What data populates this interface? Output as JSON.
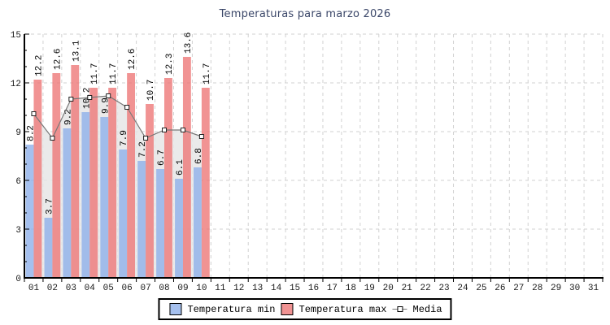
{
  "title": "Temperaturas para marzo 2026",
  "legend": {
    "min_label": "Temperatura min",
    "max_label": "Temperatura max",
    "media_label": "Media"
  },
  "colors": {
    "title": "#3a4668",
    "axis": "#000000",
    "grid": "#d2d2d2",
    "tick_label": "#1a1a1a",
    "bar_min": "#8fb0ea",
    "bar_max": "#ee7878",
    "bar_min_legend": "#a5c0ee",
    "bar_max_legend": "#f19393",
    "media_area": "#e6e6e6",
    "media_line": "#787878",
    "media_marker_fill": "#ffffff",
    "media_marker_stroke": "#222222",
    "value_label": "#000000"
  },
  "chart_data": {
    "type": "bar",
    "title": "Temperaturas para marzo 2026",
    "categories": [
      "01",
      "02",
      "03",
      "04",
      "05",
      "06",
      "07",
      "08",
      "09",
      "10",
      "11",
      "12",
      "13",
      "14",
      "15",
      "16",
      "17",
      "18",
      "19",
      "20",
      "21",
      "22",
      "23",
      "24",
      "25",
      "26",
      "27",
      "28",
      "29",
      "30",
      "31"
    ],
    "series": [
      {
        "name": "Temperatura min",
        "type": "bar",
        "values": [
          8.2,
          3.7,
          9.2,
          10.2,
          9.9,
          7.9,
          7.2,
          6.7,
          6.1,
          6.8
        ]
      },
      {
        "name": "Temperatura max",
        "type": "bar",
        "values": [
          12.2,
          12.6,
          13.1,
          11.7,
          11.7,
          12.6,
          10.7,
          12.3,
          13.6,
          11.7
        ]
      },
      {
        "name": "Media",
        "type": "line-area",
        "values_estimated_from_pixels": true,
        "values": [
          10.1,
          8.6,
          11.0,
          11.1,
          11.2,
          10.5,
          8.6,
          9.1,
          9.1,
          8.7
        ]
      }
    ],
    "xlabel": "",
    "ylabel": "",
    "ylim": [
      0,
      15
    ],
    "yticks": [
      0,
      3,
      6,
      9,
      12,
      15
    ],
    "y_minor_step": 1,
    "grid": "dashed",
    "value_labels": "rotated 90deg above bars, one decimal",
    "legend_position": "bottom"
  }
}
